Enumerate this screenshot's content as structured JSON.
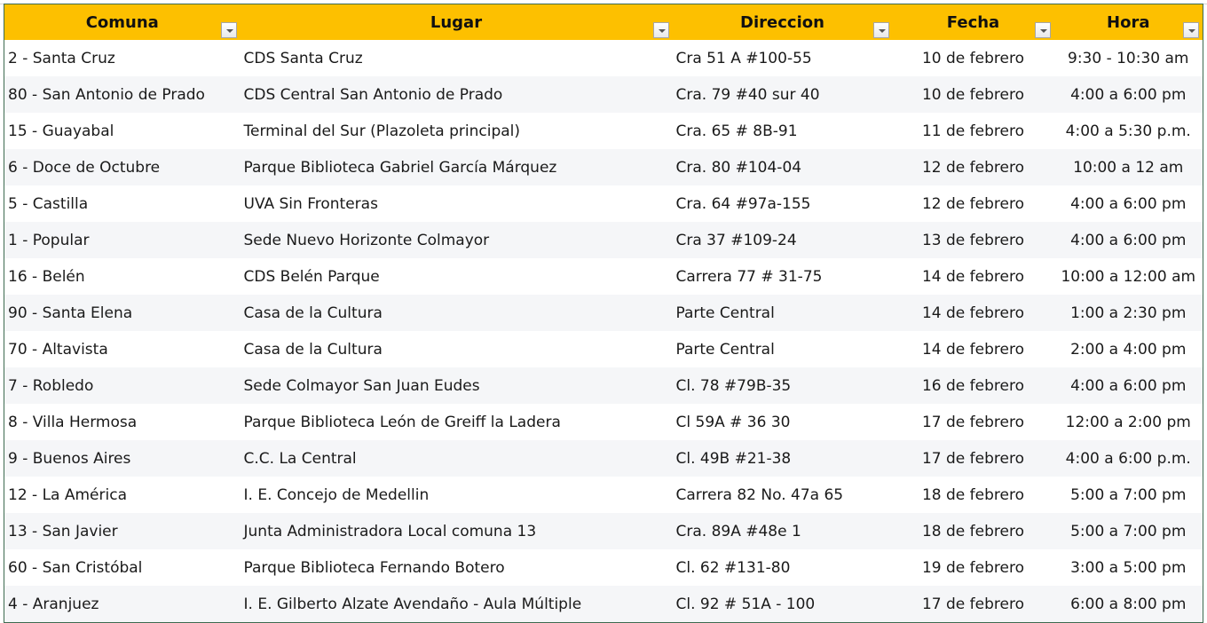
{
  "columns": [
    "Comuna",
    "Lugar",
    "Direccion",
    "Fecha",
    "Hora"
  ],
  "rows": [
    [
      "2 - Santa Cruz",
      "CDS Santa Cruz",
      "Cra 51 A #100-55",
      "10 de febrero",
      "9:30 - 10:30 am"
    ],
    [
      "80 - San Antonio de Prado",
      "CDS Central San Antonio de Prado",
      "Cra. 79 #40 sur 40",
      "10 de febrero",
      "4:00 a 6:00 pm"
    ],
    [
      "15 - Guayabal",
      "Terminal del Sur (Plazoleta principal)",
      "Cra. 65 # 8B-91",
      "11 de febrero",
      "4:00 a 5:30 p.m."
    ],
    [
      "6 - Doce de Octubre",
      "Parque Biblioteca Gabriel García Márquez",
      "Cra. 80 #104-04",
      "12 de febrero",
      "10:00 a 12  am"
    ],
    [
      "5 - Castilla",
      "UVA Sin Fronteras",
      "Cra. 64 #97a-155",
      "12 de febrero",
      "4:00 a 6:00 pm"
    ],
    [
      "1 - Popular",
      "Sede Nuevo Horizonte Colmayor",
      "Cra 37 #109-24",
      "13 de febrero",
      "4:00 a 6:00 pm"
    ],
    [
      "16 - Belén",
      "CDS Belén Parque",
      "Carrera 77 # 31-75",
      "14 de febrero",
      "10:00 a 12:00 am"
    ],
    [
      "90 - Santa Elena",
      "Casa de la Cultura",
      "Parte Central",
      "14 de febrero",
      "1:00 a 2:30 pm"
    ],
    [
      "70 - Altavista",
      "Casa de la Cultura",
      "Parte Central",
      "14 de febrero",
      "2:00 a 4:00 pm"
    ],
    [
      "7 - Robledo",
      "Sede Colmayor San Juan Eudes",
      "Cl. 78 #79B-35",
      "16 de febrero",
      "4:00 a 6:00 pm"
    ],
    [
      "8 - Villa Hermosa",
      "Parque Biblioteca León de Greiff la Ladera",
      "Cl 59A # 36 30",
      "17 de febrero",
      "12:00 a 2:00 pm"
    ],
    [
      "9 - Buenos Aires",
      "C.C. La Central",
      "Cl. 49B #21-38",
      "17 de febrero",
      "4:00 a 6:00 p.m."
    ],
    [
      "12 - La América",
      "I. E. Concejo de Medellin",
      "Carrera 82 No. 47a 65",
      "18 de febrero",
      "5:00 a 7:00 pm"
    ],
    [
      "13 - San Javier",
      "Junta Administradora Local comuna 13",
      "Cra. 89A #48e 1",
      "18 de febrero",
      "5:00 a 7:00 pm"
    ],
    [
      "60 - San Cristóbal",
      "Parque Biblioteca Fernando Botero",
      "Cl. 62 #131-80",
      "19 de febrero",
      "3:00 a 5:00 pm"
    ],
    [
      "4 - Aranjuez",
      "I. E. Gilberto Alzate Avendaño - Aula Múltiple",
      "Cl. 92 # 51A - 100",
      "17 de febrero",
      "6:00 a 8:00 pm"
    ]
  ],
  "colors": {
    "header": "#fdc000",
    "alt_row": "#f5f6f8"
  }
}
